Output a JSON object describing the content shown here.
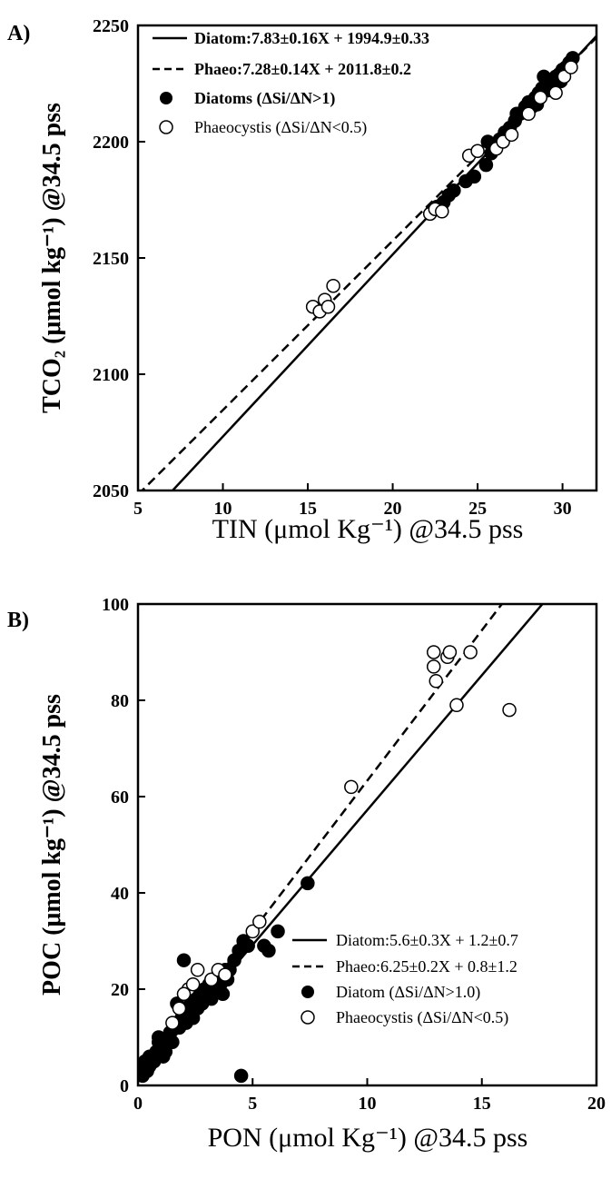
{
  "chart_data": [
    {
      "panel": "A)",
      "type": "scatter",
      "xlabel": "TIN (μmol Kg⁻¹) @34.5 pss",
      "ylabel": "TCO₂ (μmol kg⁻¹) @34.5 pss",
      "xlim": [
        5,
        32
      ],
      "ylim": [
        2050,
        2250
      ],
      "xticks": [
        "5",
        "10",
        "15",
        "20",
        "25",
        "30"
      ],
      "yticks": [
        "2050",
        "2100",
        "2150",
        "2200",
        "2250"
      ],
      "legend_position": "top-left",
      "lines": [
        {
          "name": "Diatom:7.83±0.16X  + 1994.9±0.33",
          "style": "solid",
          "slope": 7.83,
          "intercept": 1994.9
        },
        {
          "name": "Phaeo:7.28±0.14X  + 2011.8±0.2",
          "style": "dashed",
          "slope": 7.28,
          "intercept": 2011.8
        }
      ],
      "series": [
        {
          "name": "Diatoms (ΔSi/ΔN>1)",
          "marker": "filled",
          "points": [
            [
              22.3,
              2170
            ],
            [
              22.6,
              2172
            ],
            [
              23.0,
              2174
            ],
            [
              23.3,
              2177
            ],
            [
              23.6,
              2179
            ],
            [
              22.9,
              2173
            ],
            [
              24.3,
              2183
            ],
            [
              24.8,
              2185
            ],
            [
              25.5,
              2190
            ],
            [
              25.8,
              2195
            ],
            [
              26.0,
              2199
            ],
            [
              26.3,
              2201
            ],
            [
              26.6,
              2204
            ],
            [
              26.9,
              2206
            ],
            [
              27.2,
              2209
            ],
            [
              27.5,
              2212
            ],
            [
              27.8,
              2215
            ],
            [
              28.0,
              2217
            ],
            [
              28.2,
              2215
            ],
            [
              28.4,
              2219
            ],
            [
              28.6,
              2221
            ],
            [
              28.8,
              2223
            ],
            [
              29.0,
              2224
            ],
            [
              29.2,
              2225
            ],
            [
              29.4,
              2226
            ],
            [
              29.6,
              2228
            ],
            [
              29.8,
              2229
            ],
            [
              30.0,
              2231
            ],
            [
              30.2,
              2232
            ],
            [
              30.4,
              2234
            ],
            [
              30.6,
              2236
            ],
            [
              29.1,
              2222
            ],
            [
              28.5,
              2216
            ],
            [
              27.7,
              2213
            ],
            [
              26.8,
              2203
            ],
            [
              25.9,
              2197
            ],
            [
              25.6,
              2200
            ],
            [
              27.3,
              2212
            ],
            [
              28.9,
              2228
            ],
            [
              29.9,
              2226
            ]
          ]
        },
        {
          "name": "Phaeocystis (ΔSi/ΔN<0.5)",
          "marker": "open",
          "points": [
            [
              15.3,
              2129
            ],
            [
              15.7,
              2127
            ],
            [
              16.0,
              2132
            ],
            [
              16.2,
              2129
            ],
            [
              16.5,
              2138
            ],
            [
              22.2,
              2169
            ],
            [
              22.5,
              2171
            ],
            [
              22.9,
              2170
            ],
            [
              24.5,
              2194
            ],
            [
              25.0,
              2196
            ],
            [
              26.1,
              2197
            ],
            [
              26.5,
              2200
            ],
            [
              27.0,
              2203
            ],
            [
              28.0,
              2212
            ],
            [
              28.7,
              2219
            ],
            [
              29.6,
              2221
            ],
            [
              30.1,
              2228
            ],
            [
              30.5,
              2232
            ]
          ]
        }
      ]
    },
    {
      "panel": "B)",
      "type": "scatter",
      "xlabel": "PON (μmol Kg⁻¹) @34.5 pss",
      "ylabel": "POC (μmol kg⁻¹) @34.5 pss",
      "xlim": [
        0,
        20
      ],
      "ylim": [
        0,
        100
      ],
      "xticks": [
        "0",
        "5",
        "10",
        "15",
        "20"
      ],
      "yticks": [
        "0",
        "20",
        "40",
        "60",
        "80",
        "100"
      ],
      "legend_position": "bottom-right",
      "lines": [
        {
          "name": "Diatom:5.6±0.3X  + 1.2±0.7",
          "style": "solid",
          "slope": 5.6,
          "intercept": 1.2
        },
        {
          "name": "Phaeo:6.25±0.2X  + 0.8±1.2",
          "style": "dashed",
          "slope": 6.25,
          "intercept": 0.8
        }
      ],
      "series": [
        {
          "name": "Diatom (ΔSi/ΔN>1.0)",
          "marker": "filled",
          "points": [
            [
              0.1,
              3
            ],
            [
              0.2,
              2
            ],
            [
              0.3,
              5
            ],
            [
              0.4,
              3
            ],
            [
              0.5,
              4
            ],
            [
              0.6,
              6
            ],
            [
              0.7,
              5
            ],
            [
              0.8,
              7
            ],
            [
              0.9,
              9
            ],
            [
              1.0,
              8
            ],
            [
              1.1,
              6
            ],
            [
              1.2,
              9
            ],
            [
              1.3,
              10
            ],
            [
              1.4,
              11
            ],
            [
              1.5,
              9
            ],
            [
              1.6,
              12
            ],
            [
              1.7,
              13
            ],
            [
              1.8,
              12
            ],
            [
              1.9,
              14
            ],
            [
              2.0,
              16
            ],
            [
              2.1,
              13
            ],
            [
              2.2,
              15
            ],
            [
              2.3,
              17
            ],
            [
              2.4,
              14
            ],
            [
              2.5,
              18
            ],
            [
              2.6,
              16
            ],
            [
              2.7,
              19
            ],
            [
              2.8,
              17
            ],
            [
              2.9,
              20
            ],
            [
              3.0,
              19
            ],
            [
              3.1,
              21
            ],
            [
              3.2,
              18
            ],
            [
              3.3,
              22
            ],
            [
              3.4,
              20
            ],
            [
              3.5,
              23
            ],
            [
              3.6,
              21
            ],
            [
              3.7,
              19
            ],
            [
              3.8,
              24
            ],
            [
              3.9,
              22
            ],
            [
              4.0,
              24
            ],
            [
              4.2,
              26
            ],
            [
              4.4,
              28
            ],
            [
              4.6,
              30
            ],
            [
              4.8,
              29
            ],
            [
              2.0,
              26
            ],
            [
              1.7,
              17
            ],
            [
              5.5,
              29
            ],
            [
              5.7,
              28
            ],
            [
              6.1,
              32
            ],
            [
              7.4,
              42
            ],
            [
              4.5,
              2
            ],
            [
              1.2,
              7
            ],
            [
              0.9,
              10
            ],
            [
              0.5,
              6
            ]
          ]
        },
        {
          "name": "Phaeocystis (ΔSi/ΔN<0.5)",
          "marker": "open",
          "points": [
            [
              1.5,
              13
            ],
            [
              1.8,
              16
            ],
            [
              2.2,
              20
            ],
            [
              2.4,
              21
            ],
            [
              2.6,
              24
            ],
            [
              3.2,
              22
            ],
            [
              3.5,
              24
            ],
            [
              3.8,
              23
            ],
            [
              2.0,
              19
            ],
            [
              5.0,
              32
            ],
            [
              5.3,
              34
            ],
            [
              9.3,
              62
            ],
            [
              12.9,
              90
            ],
            [
              12.9,
              87
            ],
            [
              13.0,
              84
            ],
            [
              13.5,
              89
            ],
            [
              13.6,
              90
            ],
            [
              13.9,
              79
            ],
            [
              14.5,
              90
            ],
            [
              16.2,
              78
            ]
          ]
        }
      ]
    }
  ]
}
